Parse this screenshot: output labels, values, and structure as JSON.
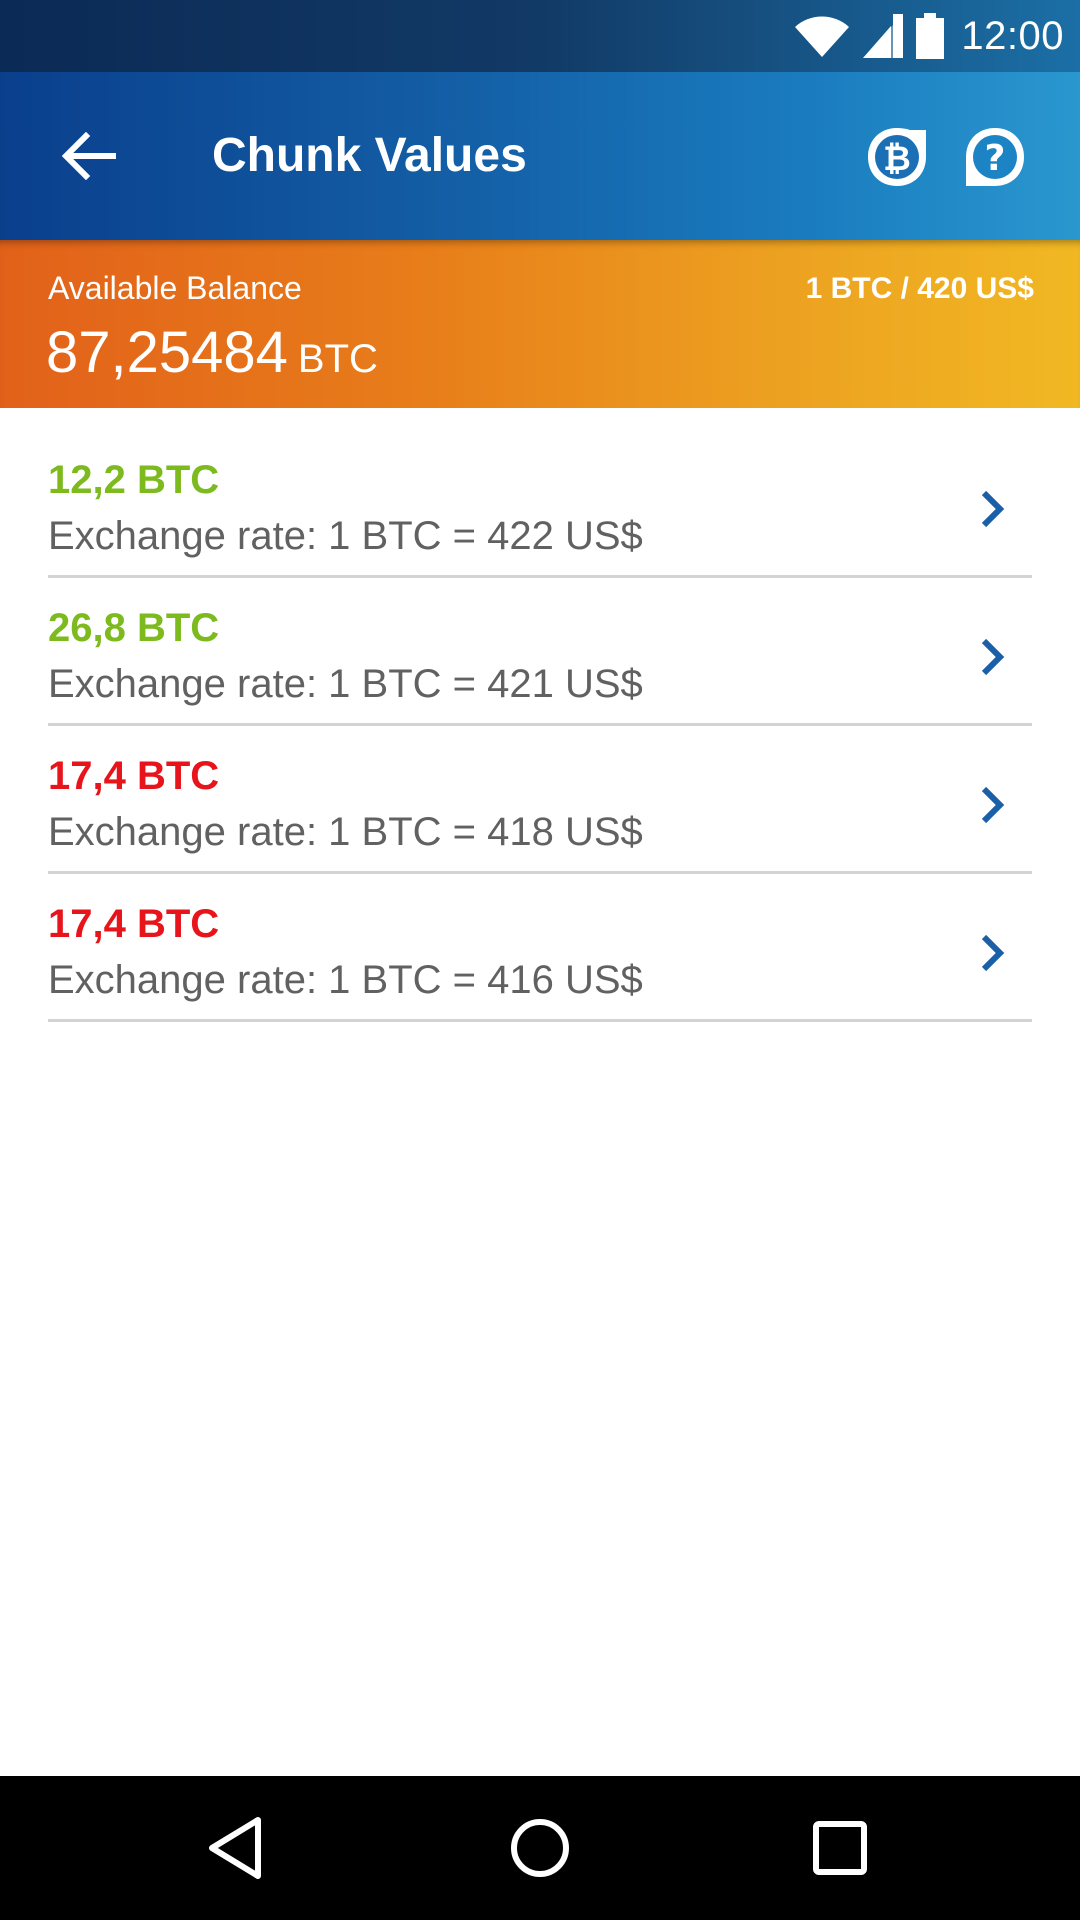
{
  "status_bar": {
    "time": "12:00",
    "icons": [
      "wifi-icon",
      "cell-signal-icon",
      "battery-icon"
    ]
  },
  "app_bar": {
    "title": "Chunk Values",
    "icons": [
      "back-arrow-icon",
      "bitcoin-icon",
      "help-icon"
    ]
  },
  "balance": {
    "label": "Available Balance",
    "amount": "87,25484",
    "unit": "BTC",
    "rate": "1 BTC / 420 US$"
  },
  "chunks": [
    {
      "amount": "12,2 BTC",
      "rate": "Exchange rate: 1 BTC = 422 US$",
      "color": "#7dba1e"
    },
    {
      "amount": "26,8 BTC",
      "rate": "Exchange rate: 1 BTC = 421 US$",
      "color": "#7dba1e"
    },
    {
      "amount": "17,4 BTC",
      "rate": "Exchange rate: 1 BTC = 418 US$",
      "color": "#e8141c"
    },
    {
      "amount": "17,4 BTC",
      "rate": "Exchange rate: 1 BTC = 416 US$",
      "color": "#e8141c"
    }
  ],
  "colors": {
    "accent_blue": "#1a5fa8",
    "positive": "#7dba1e",
    "negative": "#e8141c"
  },
  "nav_bar": {
    "icons": [
      "back-triangle-icon",
      "home-circle-icon",
      "recents-square-icon"
    ]
  }
}
